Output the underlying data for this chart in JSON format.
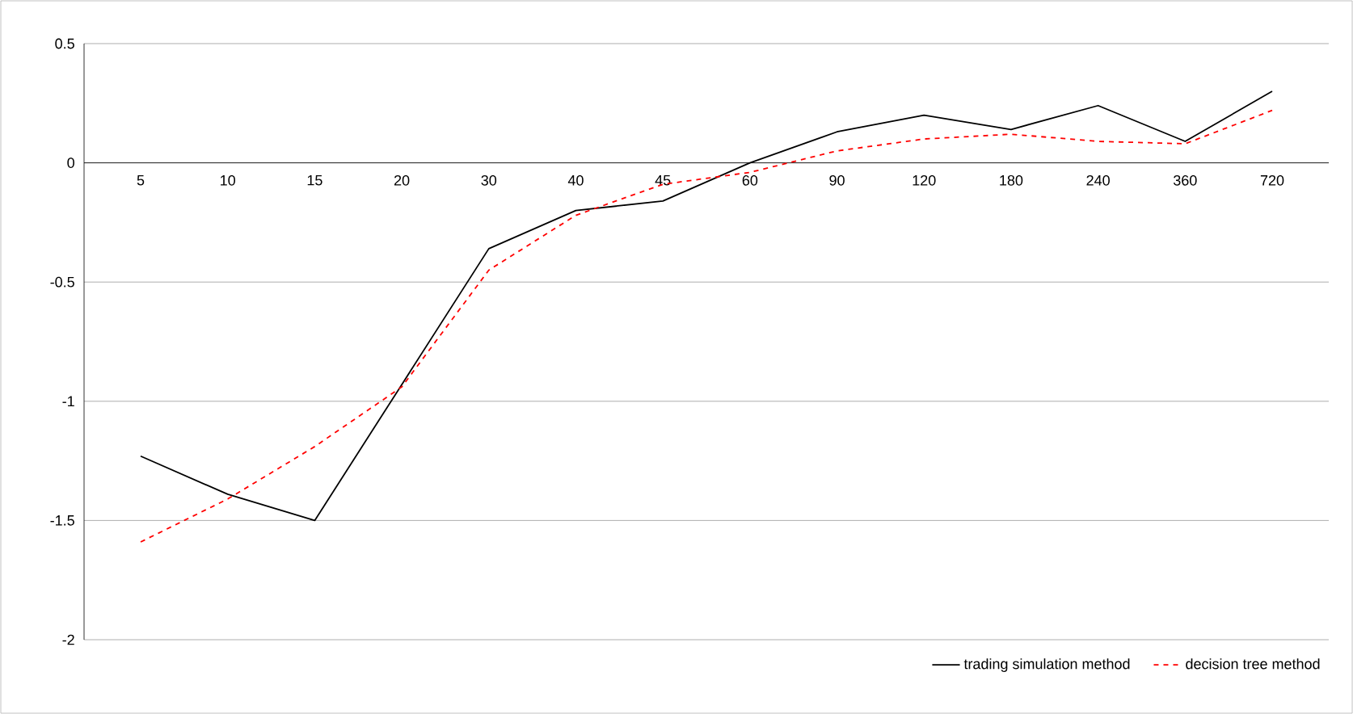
{
  "chart_data": {
    "type": "line",
    "categories": [
      "5",
      "10",
      "15",
      "20",
      "30",
      "40",
      "45",
      "60",
      "90",
      "120",
      "180",
      "240",
      "360",
      "720"
    ],
    "series": [
      {
        "name": "trading simulation method",
        "color": "#000000",
        "line_style": "solid",
        "values": [
          -1.23,
          -1.39,
          -1.5,
          -0.93,
          -0.36,
          -0.2,
          -0.16,
          0.0,
          0.13,
          0.2,
          0.14,
          0.24,
          0.09,
          0.3
        ]
      },
      {
        "name": "decision tree method",
        "color": "#ff0000",
        "line_style": "dashed",
        "values": [
          -1.59,
          -1.41,
          -1.19,
          -0.94,
          -0.45,
          -0.22,
          -0.09,
          -0.04,
          0.05,
          0.1,
          0.12,
          0.09,
          0.08,
          0.22
        ]
      }
    ],
    "ylim": [
      -2,
      0.5
    ],
    "yticks": [
      -2,
      -1.5,
      -1,
      -0.5,
      0,
      0.5
    ],
    "grid": "y",
    "legend": "bottom right",
    "marker": "none"
  }
}
